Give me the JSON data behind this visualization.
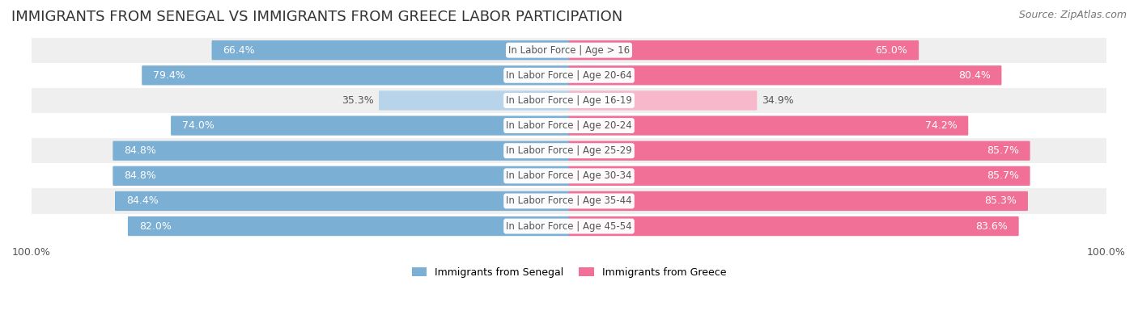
{
  "title": "IMMIGRANTS FROM SENEGAL VS IMMIGRANTS FROM GREECE LABOR PARTICIPATION",
  "source": "Source: ZipAtlas.com",
  "categories": [
    "In Labor Force | Age > 16",
    "In Labor Force | Age 20-64",
    "In Labor Force | Age 16-19",
    "In Labor Force | Age 20-24",
    "In Labor Force | Age 25-29",
    "In Labor Force | Age 30-34",
    "In Labor Force | Age 35-44",
    "In Labor Force | Age 45-54"
  ],
  "senegal_values": [
    66.4,
    79.4,
    35.3,
    74.0,
    84.8,
    84.8,
    84.4,
    82.0
  ],
  "greece_values": [
    65.0,
    80.4,
    34.9,
    74.2,
    85.7,
    85.7,
    85.3,
    83.6
  ],
  "senegal_color": "#7bafd4",
  "senegal_light_color": "#b8d4ea",
  "greece_color": "#f07098",
  "greece_light_color": "#f7b8cc",
  "row_bg_even": "#efefef",
  "row_bg_odd": "#ffffff",
  "label_color_dark": "#555555",
  "center_label_color": "#555555",
  "background_color": "#ffffff",
  "max_value": 100.0,
  "legend_senegal": "Immigrants from Senegal",
  "legend_greece": "Immigrants from Greece",
  "title_fontsize": 13,
  "source_fontsize": 9,
  "bar_label_fontsize": 9,
  "category_fontsize": 8.5,
  "axis_fontsize": 9
}
